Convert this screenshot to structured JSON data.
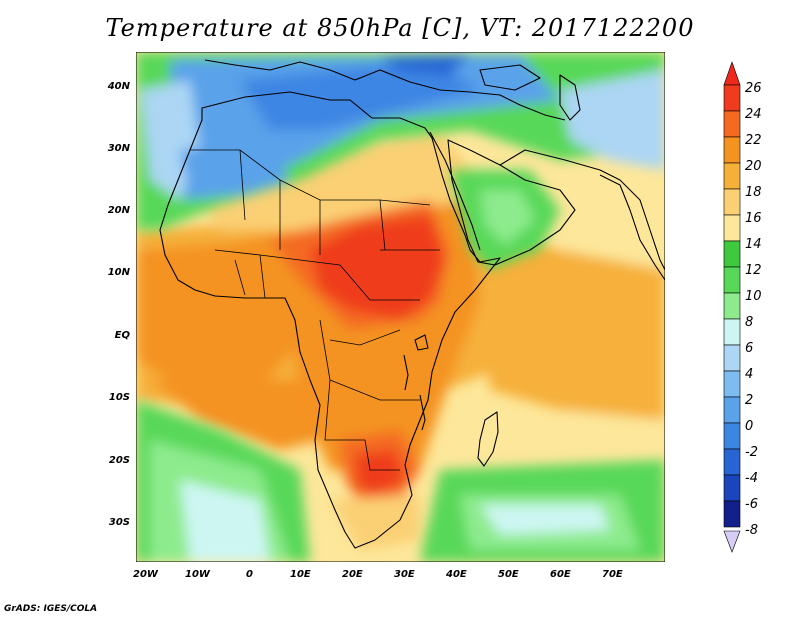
{
  "title": "Temperature at 850hPa [C], VT: 2017122200",
  "credit": "GrADS: IGES/COLA",
  "axes": {
    "lon_labels": [
      "20W",
      "10W",
      "0",
      "10E",
      "20E",
      "30E",
      "40E",
      "50E",
      "60E",
      "70E"
    ],
    "lat_labels": [
      "40N",
      "30N",
      "20N",
      "10N",
      "EQ",
      "10S",
      "20S",
      "30S"
    ]
  },
  "colorbar": {
    "labels": [
      "26",
      "24",
      "22",
      "20",
      "18",
      "16",
      "14",
      "12",
      "10",
      "8",
      "6",
      "4",
      "2",
      "0",
      "-2",
      "-4",
      "-6",
      "-8"
    ],
    "colors": {
      "top_arrow": "#ef2a1c",
      "bottom_arrow": "#d7ccf5",
      "c24_26": "#ef3c1e",
      "c22_24": "#f46a20",
      "c20_22": "#f49320",
      "c18_20": "#f6b03a",
      "c16_18": "#fbd074",
      "c14_16": "#fde79a",
      "c12_14": "#3ec93e",
      "c10_12": "#58d858",
      "c8_10": "#8deb8d",
      "c6_8": "#cdf6f3",
      "c4_6": "#acd6f4",
      "c2_4": "#7ebbf0",
      "c0_2": "#5aa2ea",
      "cm2_0": "#3c86e3",
      "cm4_m2": "#2765d4",
      "cm6_m4": "#1a45bd",
      "cm8_m6": "#13208b"
    }
  },
  "map_colors": {
    "ocean_warm": "#fde79a",
    "land_hot": "#f46a20",
    "land_hottest": "#ef3c1e",
    "land_warm": "#f49320",
    "cool_green": "#58d858",
    "cold_blue": "#5aa2ea",
    "coastline": "#000000"
  }
}
